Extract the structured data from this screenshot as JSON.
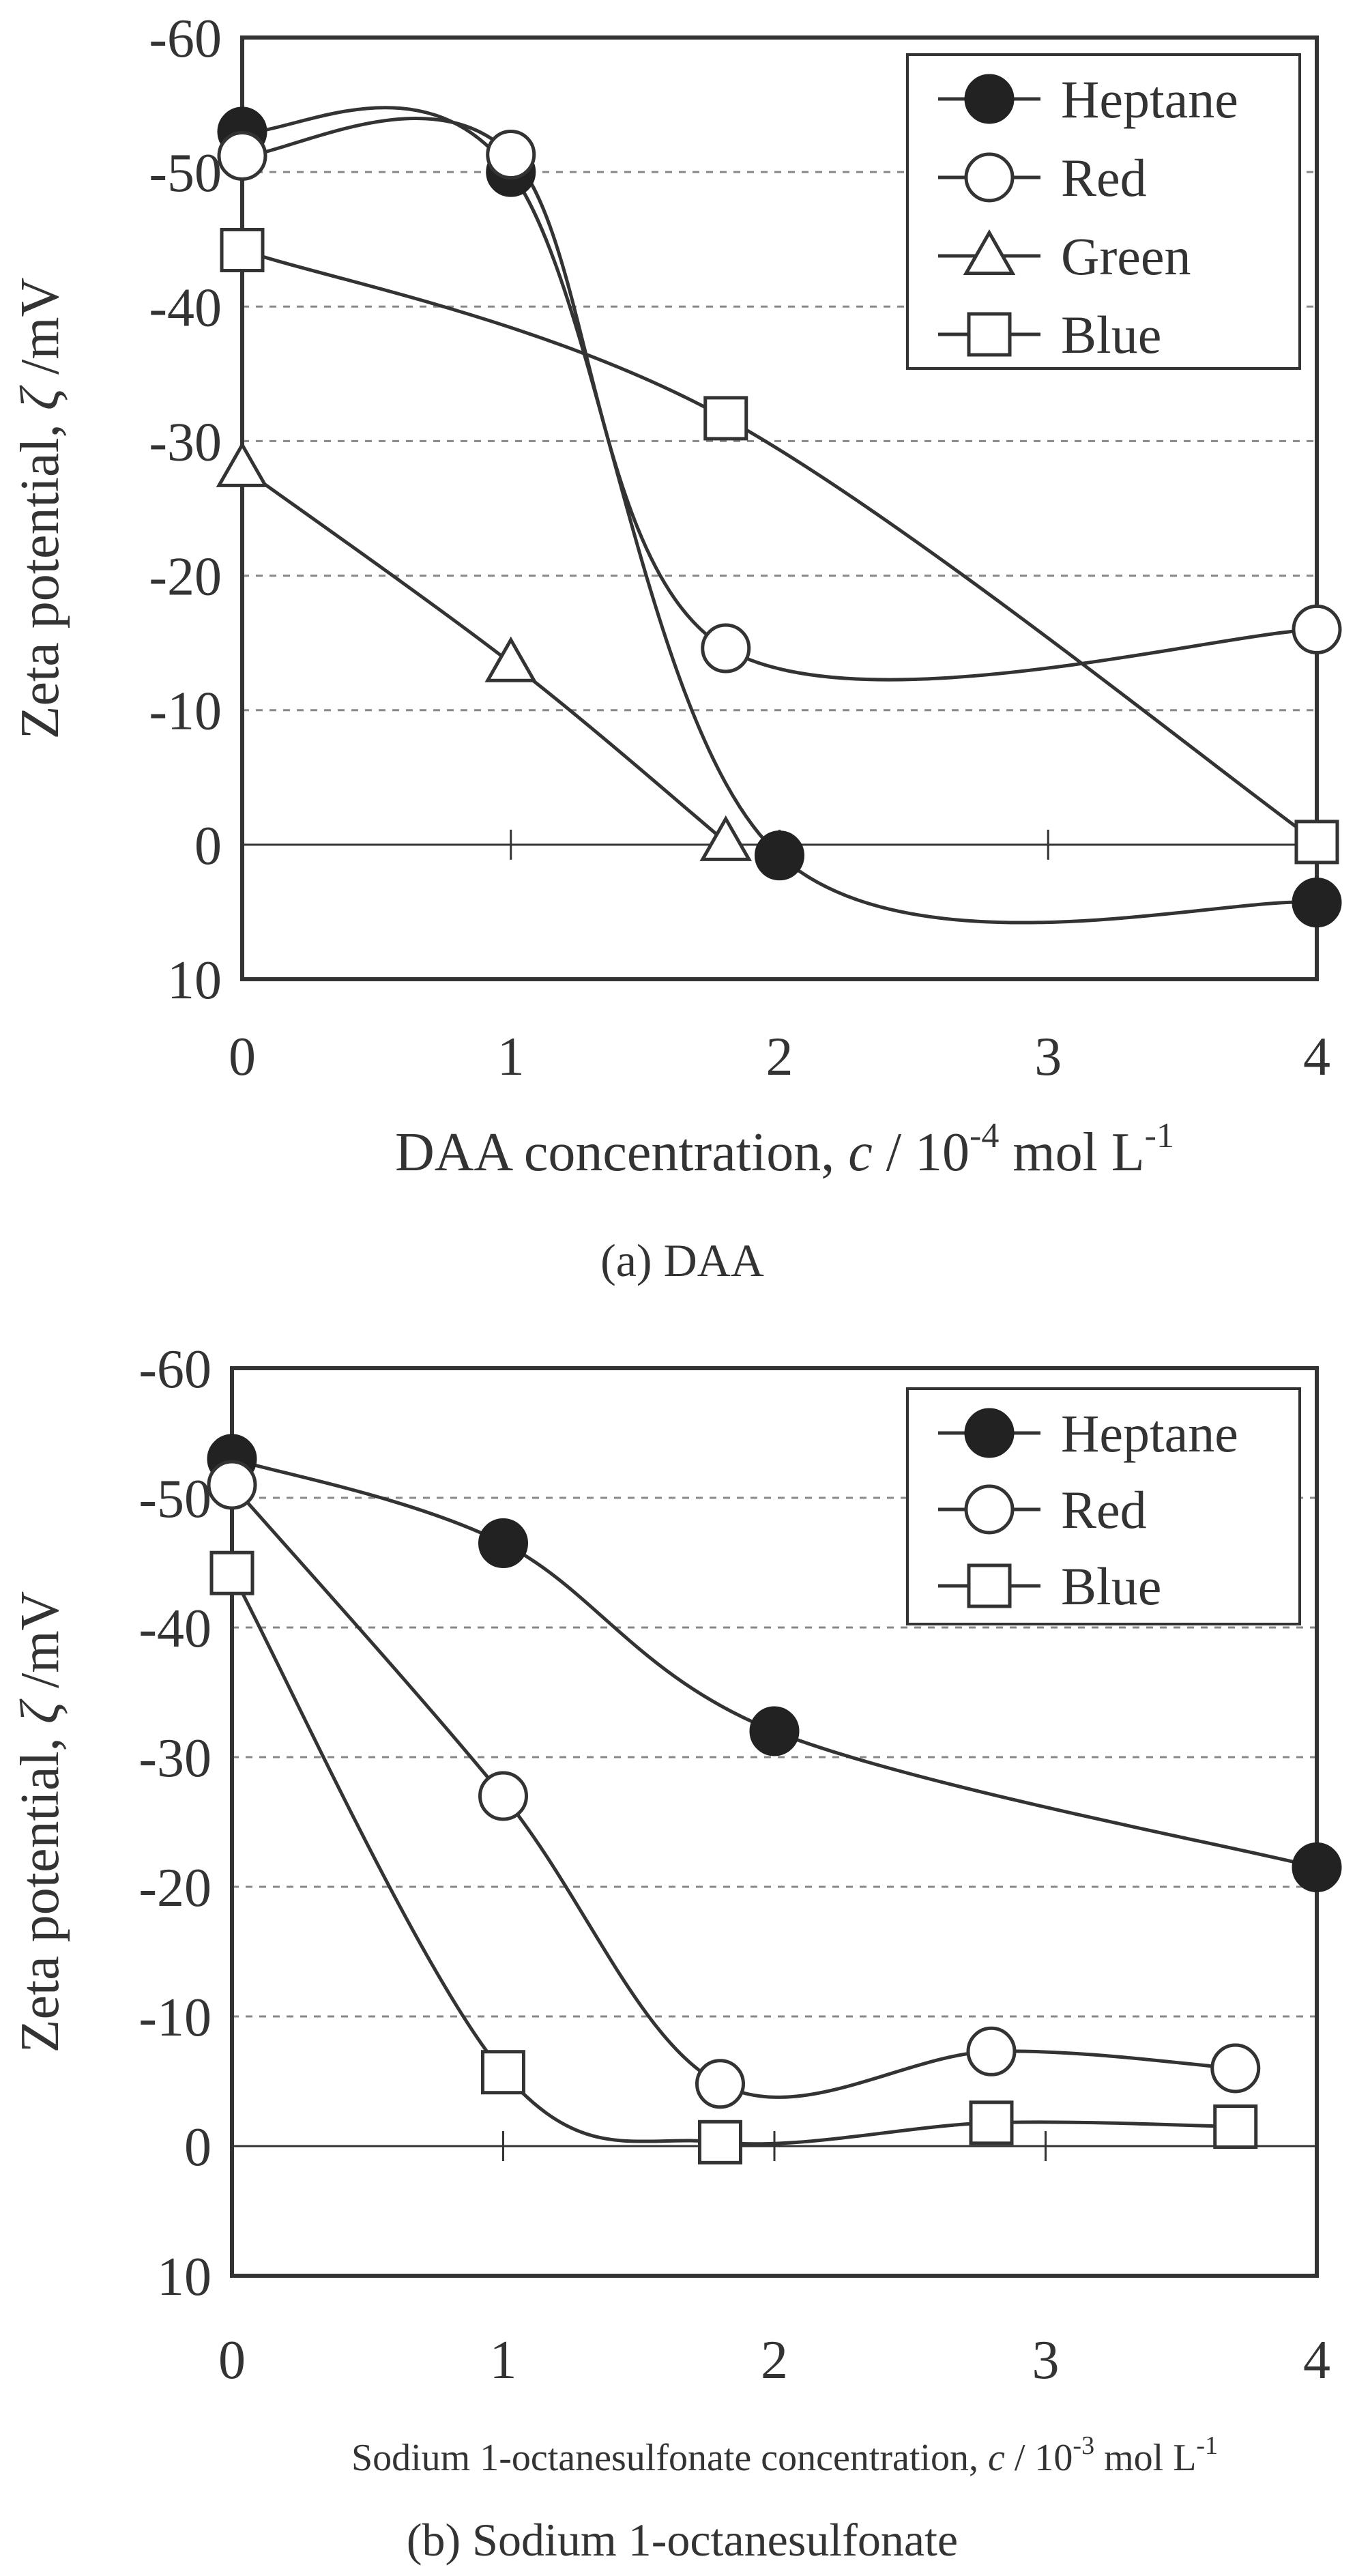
{
  "chart_data": [
    {
      "type": "line",
      "caption": "(a) DAA",
      "xlabel_text": "DAA concentration, ",
      "xlabel_var": "c",
      "xlabel_mid": " / 10",
      "xlabel_exp": "-4",
      "xlabel_unit": " mol L",
      "xlabel_unit_exp": "-1",
      "ylabel_text": "Zeta potential, ",
      "ylabel_var": "ζ",
      "ylabel_unit": " /mV",
      "xlim": [
        0,
        4
      ],
      "ylim": [
        10,
        -60
      ],
      "xticks": [
        "0",
        "1",
        "2",
        "3",
        "4"
      ],
      "yticks": [
        "-60",
        "-50",
        "-40",
        "-30",
        "-20",
        "-10",
        "0",
        "10"
      ],
      "legend_position": "top-right",
      "series": [
        {
          "name": "Heptane",
          "marker": "filled-circle",
          "x": [
            0,
            1,
            2,
            4
          ],
          "y": [
            -53,
            -50,
            0.8,
            4.3
          ]
        },
        {
          "name": "Red",
          "marker": "open-circle",
          "x": [
            0,
            1,
            1.8,
            4
          ],
          "y": [
            -51.2,
            -51.3,
            -14.6,
            -16
          ]
        },
        {
          "name": "Green",
          "marker": "open-triangle",
          "x": [
            0,
            1,
            1.8
          ],
          "y": [
            -28,
            -13.5,
            -0.2
          ]
        },
        {
          "name": "Blue",
          "marker": "open-square",
          "x": [
            0,
            1.8,
            4
          ],
          "y": [
            -44.2,
            -31.7,
            -0.2
          ]
        }
      ]
    },
    {
      "type": "line",
      "caption": "(b) Sodium 1-octanesulfonate",
      "xlabel_text": "Sodium 1-octanesulfonate concentration, ",
      "xlabel_var": "c",
      "xlabel_mid": " / 10",
      "xlabel_exp": "-3",
      "xlabel_unit": " mol L",
      "xlabel_unit_exp": "-1",
      "ylabel_text": "Zeta potential, ",
      "ylabel_var": "ζ",
      "ylabel_unit": " /mV",
      "xlim": [
        0,
        4
      ],
      "ylim": [
        10,
        -60
      ],
      "xticks": [
        "0",
        "1",
        "2",
        "3",
        "4"
      ],
      "yticks": [
        "-60",
        "-50",
        "-40",
        "-30",
        "-20",
        "-10",
        "0",
        "10"
      ],
      "legend_position": "top-right",
      "series": [
        {
          "name": "Heptane",
          "marker": "filled-circle",
          "x": [
            0,
            1,
            2,
            4
          ],
          "y": [
            -53,
            -46.5,
            -32,
            -21.5
          ]
        },
        {
          "name": "Red",
          "marker": "open-circle",
          "x": [
            0,
            1,
            1.8,
            2.8,
            3.7
          ],
          "y": [
            -51,
            -27,
            -4.8,
            -7.3,
            -6
          ]
        },
        {
          "name": "Blue",
          "marker": "open-square",
          "x": [
            0,
            1,
            1.8,
            2.8,
            3.7
          ],
          "y": [
            -44.2,
            -5.7,
            -0.3,
            -1.8,
            -1.5
          ]
        }
      ]
    }
  ]
}
